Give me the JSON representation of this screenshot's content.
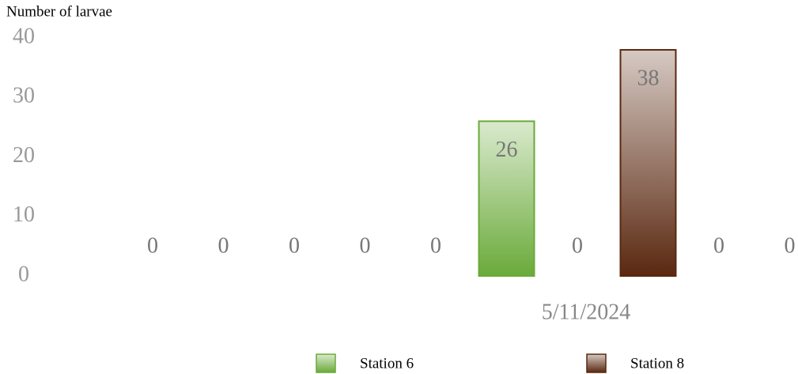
{
  "chart_data": {
    "type": "bar",
    "y_label": "Number of larvae",
    "categories": [
      null,
      null,
      null,
      null,
      null,
      null,
      "5/11/2024",
      null,
      null,
      null
    ],
    "series": [
      {
        "name": "Station 6",
        "color": "#6aaa3a",
        "values": [
          0,
          0,
          0,
          0,
          0,
          26,
          null,
          null,
          null,
          null
        ]
      },
      {
        "name": "Station 8",
        "color": "#5a2810",
        "values": [
          null,
          null,
          null,
          null,
          null,
          null,
          0,
          38,
          0,
          0
        ]
      }
    ],
    "ylim": [
      0,
      40
    ],
    "yticks": [
      0,
      10,
      20,
      30,
      40
    ],
    "grid": false
  }
}
